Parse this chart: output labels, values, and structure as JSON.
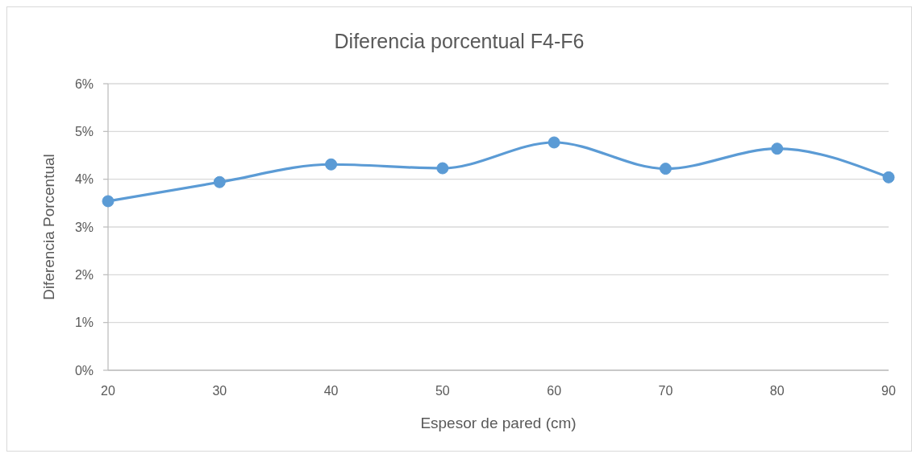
{
  "chart_data": {
    "type": "line",
    "title": "Diferencia porcentual F4-F6",
    "xlabel": "Espesor de pared (cm)",
    "ylabel": "Diferencia Porcentual",
    "categories": [
      "20",
      "30",
      "40",
      "50",
      "60",
      "70",
      "80",
      "90"
    ],
    "series": [
      {
        "color": "#5b9bd5",
        "values": [
          3.54,
          3.94,
          4.31,
          4.23,
          4.77,
          4.22,
          4.64,
          4.04
        ]
      }
    ],
    "ylim": [
      0,
      6
    ],
    "yticks": [
      {
        "value": 0,
        "label": "0%"
      },
      {
        "value": 1,
        "label": "1%"
      },
      {
        "value": 2,
        "label": "2%"
      },
      {
        "value": 3,
        "label": "3%"
      },
      {
        "value": 4,
        "label": "4%"
      },
      {
        "value": 5,
        "label": "5%"
      },
      {
        "value": 6,
        "label": "6%"
      }
    ],
    "grid": "y",
    "marker": "circle",
    "line_style": "solid"
  }
}
